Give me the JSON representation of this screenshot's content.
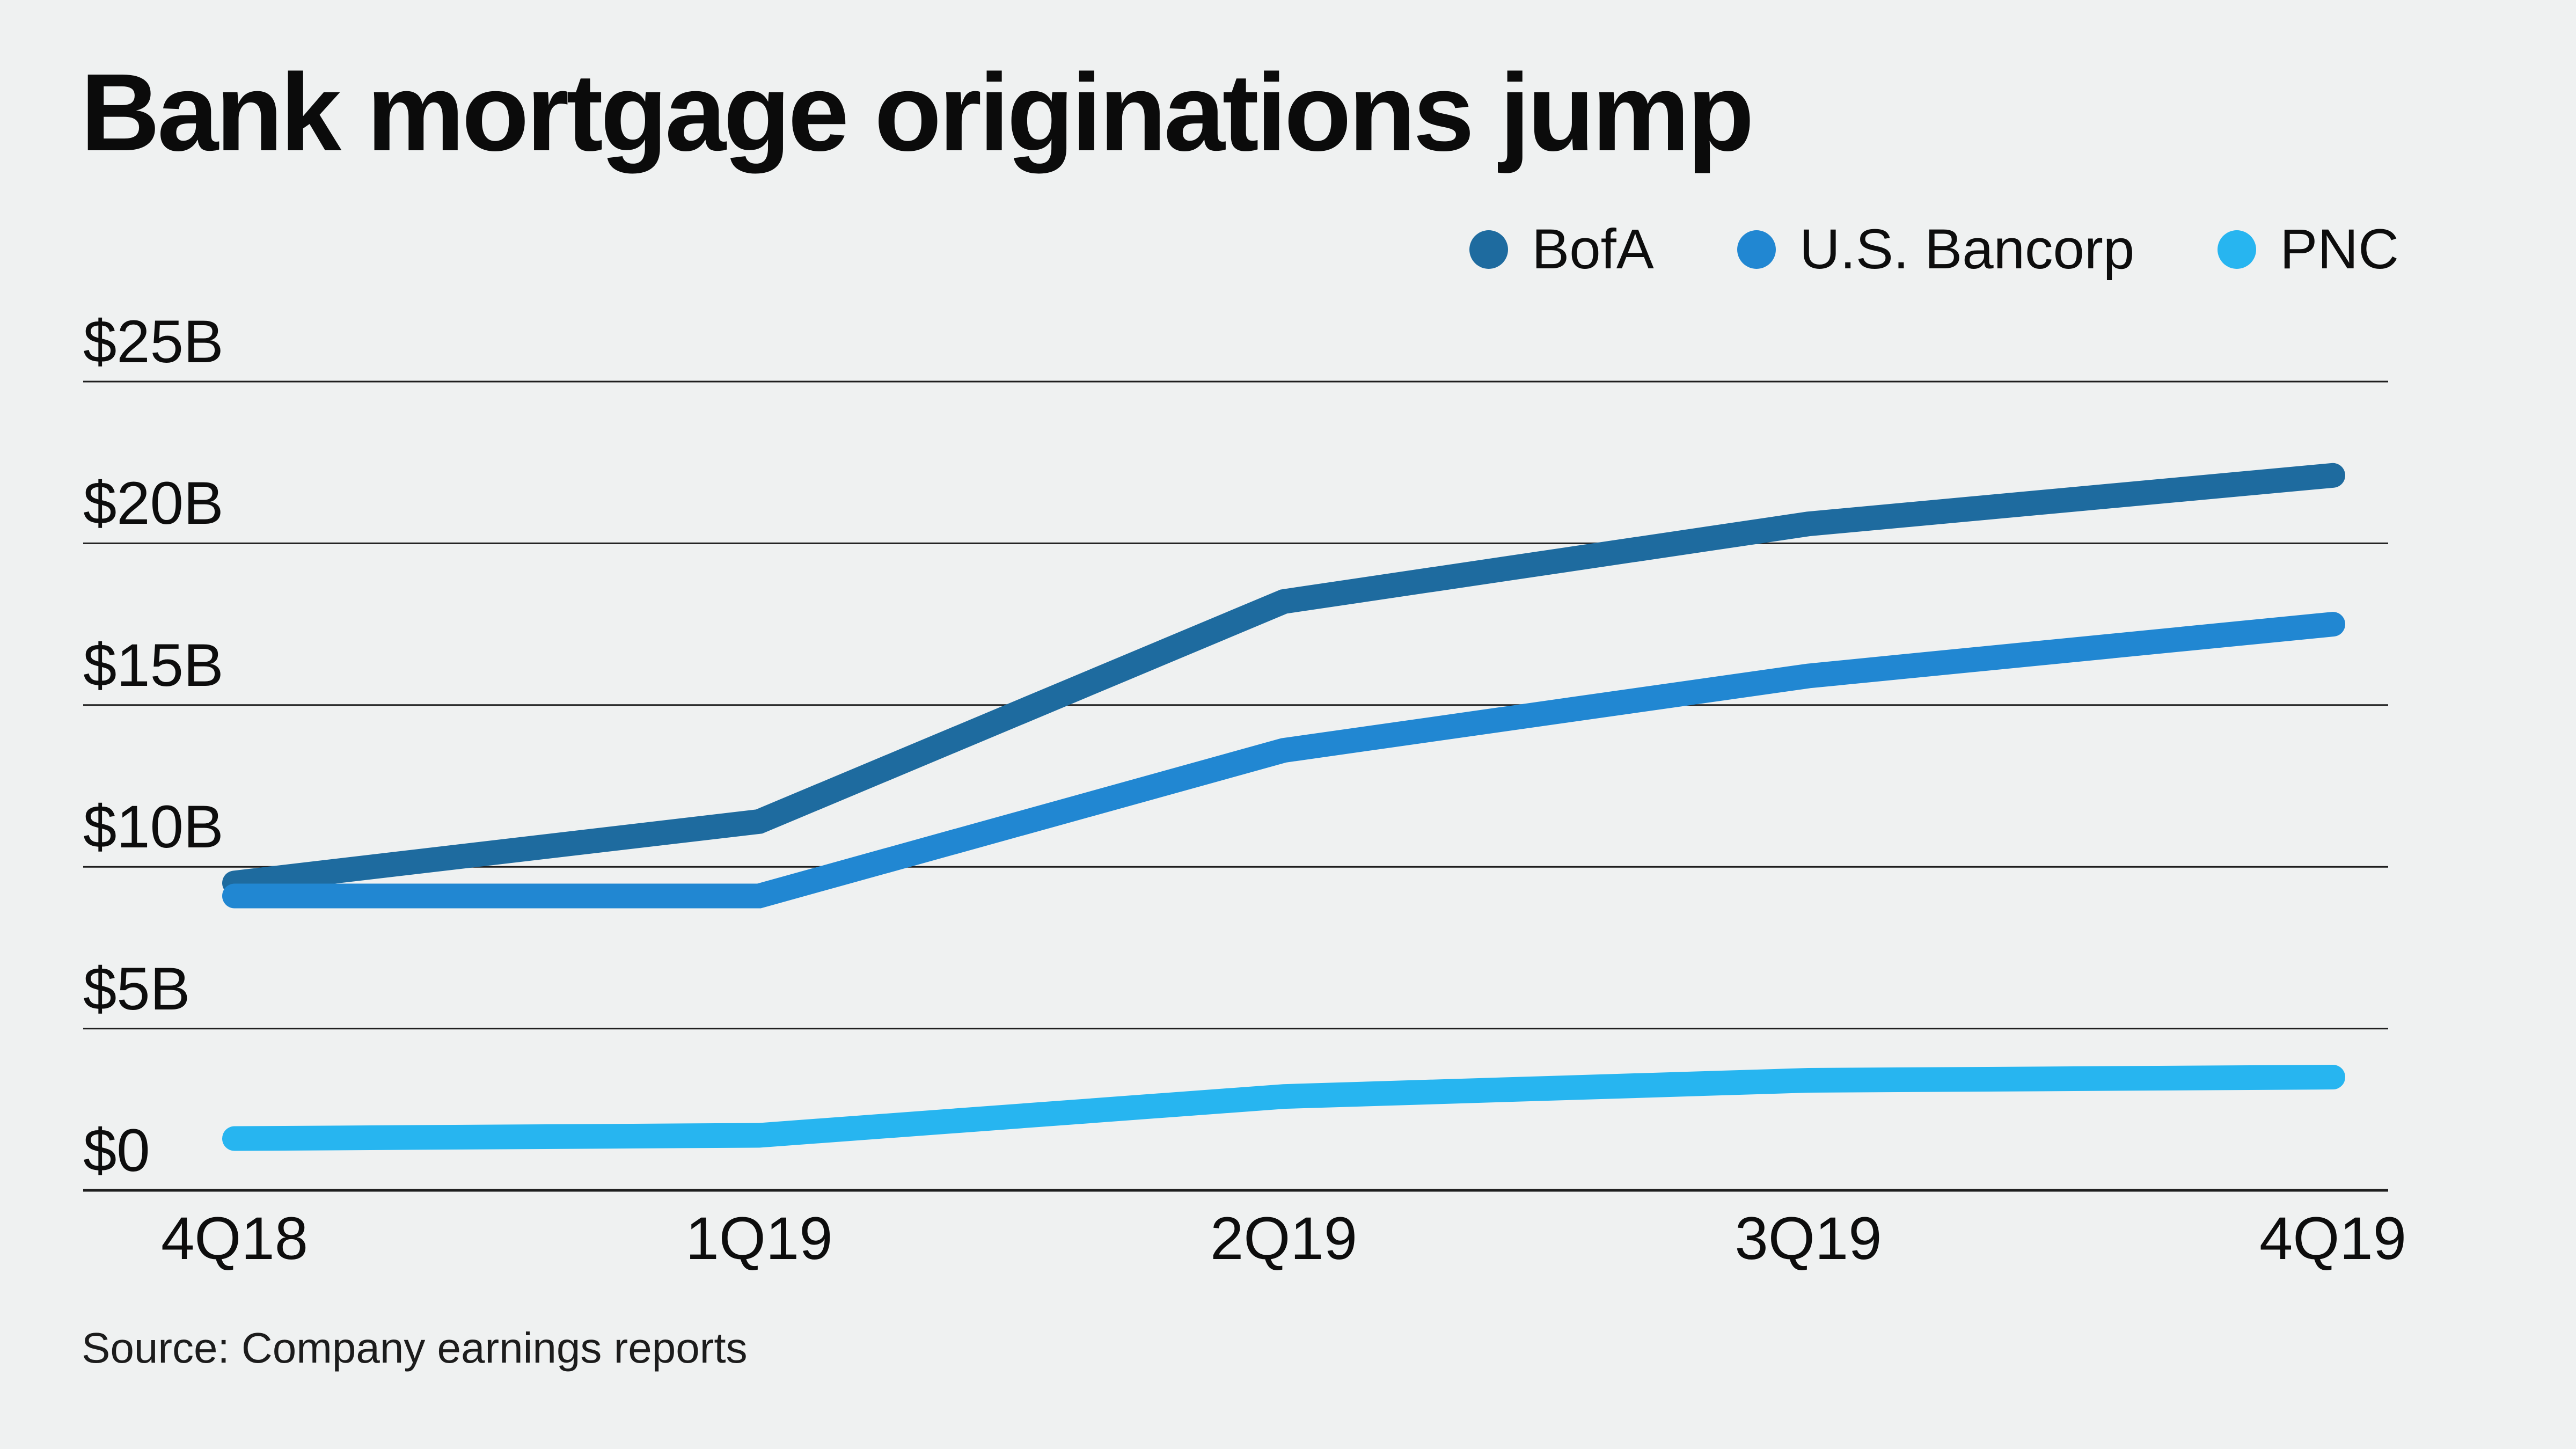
{
  "page": {
    "background": "#eff1f1"
  },
  "chart_data": {
    "type": "line",
    "title": "Bank mortgage originations jump",
    "source": "Source: Company earnings reports",
    "categories": [
      "4Q18",
      "1Q19",
      "2Q19",
      "3Q19",
      "4Q19"
    ],
    "series": [
      {
        "name": "BofA",
        "color": "#1e6b9f",
        "values": [
          9.5,
          11.4,
          18.2,
          20.6,
          22.1
        ]
      },
      {
        "name": "U.S. Bancorp",
        "color": "#2187d2",
        "values": [
          9.1,
          9.1,
          13.6,
          15.9,
          17.5
        ]
      },
      {
        "name": "PNC",
        "color": "#27b5f0",
        "values": [
          1.6,
          1.7,
          2.9,
          3.4,
          3.5
        ]
      }
    ],
    "yticks": [
      0,
      5,
      10,
      15,
      20,
      25
    ],
    "ytick_labels": [
      "$0",
      "$5B",
      "$10B",
      "$15B",
      "$20B",
      "$25B"
    ],
    "ylim": [
      0,
      25
    ],
    "unit": "billions USD",
    "grid": "horizontal",
    "grid_color": "#1f1f1f",
    "legend_position": "top-right"
  }
}
